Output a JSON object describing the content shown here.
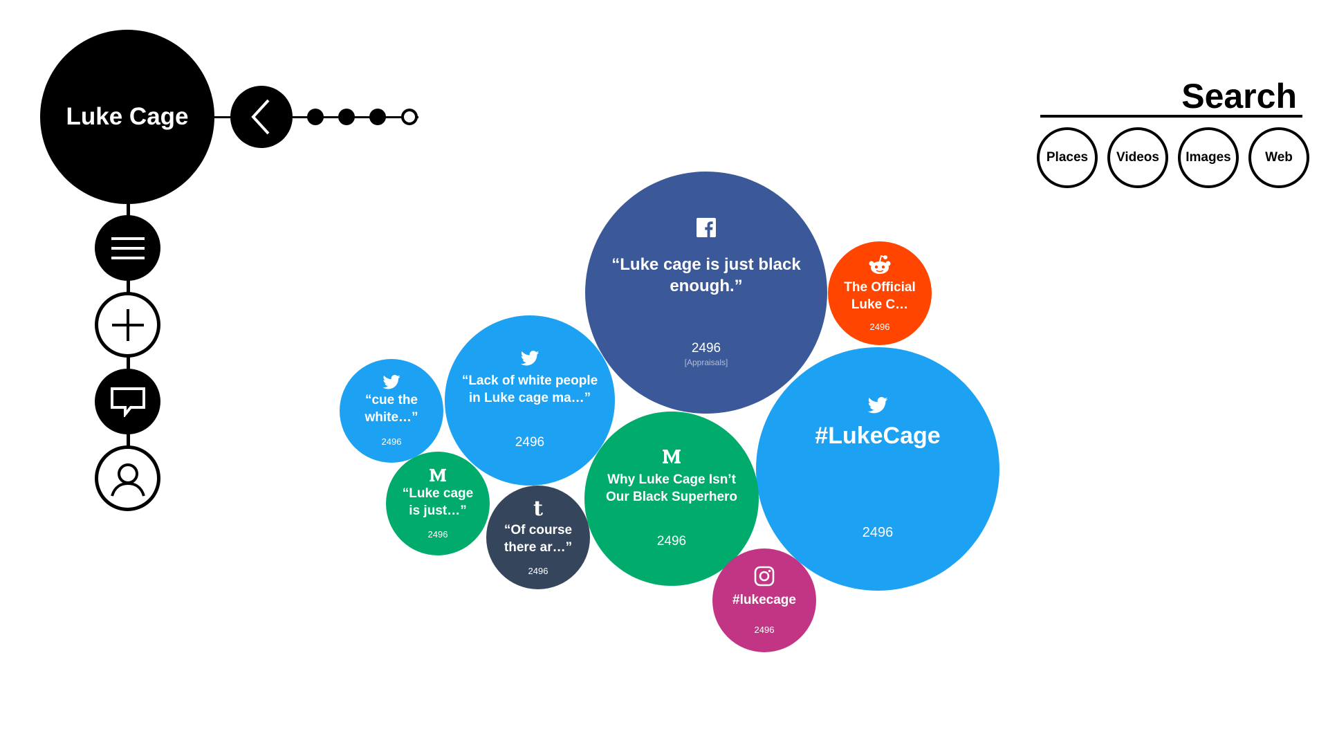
{
  "topic": {
    "title": "Luke Cage"
  },
  "search": {
    "title": "Search",
    "filters": [
      "Places",
      "Videos",
      "Images",
      "Web"
    ]
  },
  "colors": {
    "facebook": "#3B5998",
    "twitter": "#1DA1F2",
    "reddit": "#FF4500",
    "medium": "#00AB6C",
    "tumblr": "#35465C",
    "instagram": "#C13584"
  },
  "bubbles": [
    {
      "platform": "facebook",
      "icon": "facebook-icon",
      "text": "“Luke cage is just black enough.”",
      "count": "2496",
      "sub": "[Appraisals]"
    },
    {
      "platform": "reddit",
      "icon": "reddit-icon",
      "text": "The Official Luke C…",
      "count": "2496"
    },
    {
      "platform": "twitter",
      "icon": "twitter-icon",
      "text": "#LukeCage",
      "count": "2496"
    },
    {
      "platform": "twitter",
      "icon": "twitter-icon",
      "text": "“Lack of white people in Luke cage ma…”",
      "count": "2496"
    },
    {
      "platform": "twitter",
      "icon": "twitter-icon",
      "text": "“cue the white…”",
      "count": "2496"
    },
    {
      "platform": "medium",
      "icon": "medium-icon",
      "text": "Why Luke Cage Isn’t Our Black Superhero",
      "count": "2496"
    },
    {
      "platform": "medium",
      "icon": "medium-icon",
      "text": "“Luke cage is just…”",
      "count": "2496"
    },
    {
      "platform": "tumblr",
      "icon": "tumblr-icon",
      "text": "“Of course there ar…”",
      "count": "2496"
    },
    {
      "platform": "instagram",
      "icon": "instagram-icon",
      "text": "#lukecage",
      "count": "2496"
    }
  ]
}
